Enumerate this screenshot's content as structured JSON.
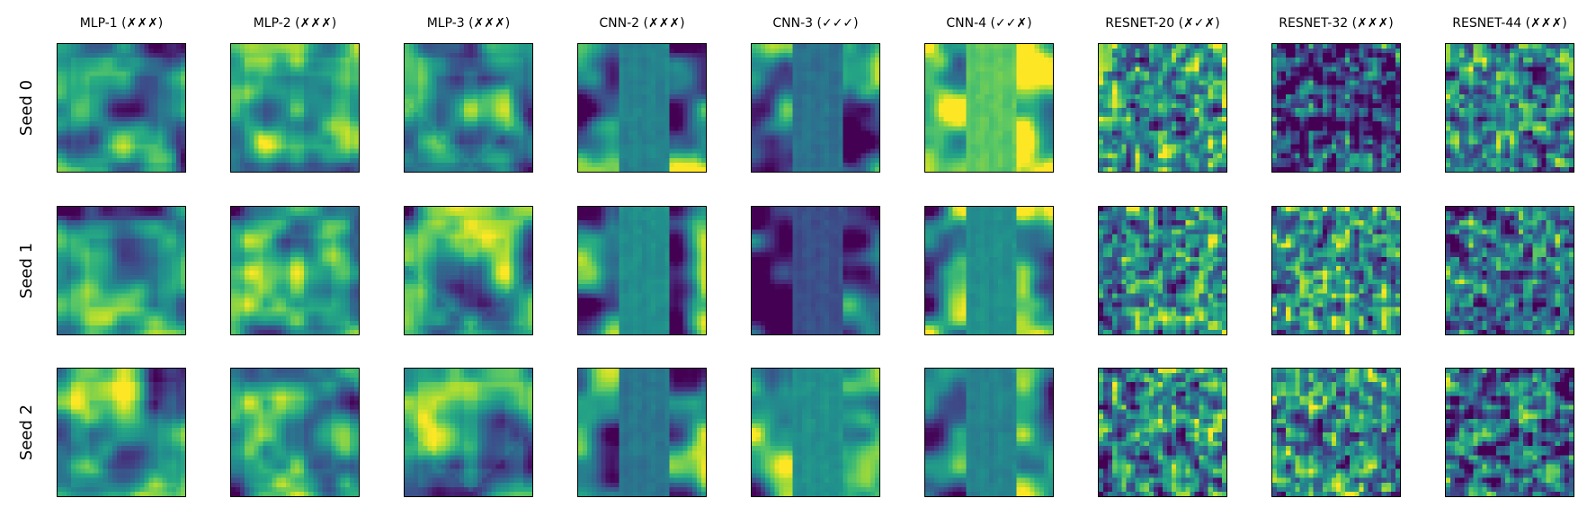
{
  "chart_data": {
    "type": "heatmap",
    "colormap": "viridis",
    "grid": false,
    "columns": [
      {
        "title": "MLP-1 (✗✗✗)",
        "pattern": "mlp1"
      },
      {
        "title": "MLP-2 (✗✗✗)",
        "pattern": "mlp2"
      },
      {
        "title": "MLP-3 (✗✗✗)",
        "pattern": "mlp3"
      },
      {
        "title": "CNN-2 (✗✗✗)",
        "pattern": "cnn"
      },
      {
        "title": "CNN-3 (✓✓✓)",
        "pattern": "cnn"
      },
      {
        "title": "CNN-4 (✓✓✗)",
        "pattern": "cnn"
      },
      {
        "title": "RESNET-20 (✗✓✗)",
        "pattern": "resnet"
      },
      {
        "title": "RESNET-32 (✗✗✗)",
        "pattern": "resnet"
      },
      {
        "title": "RESNET-44 (✗✗✗)",
        "pattern": "resnet"
      }
    ],
    "rows": [
      {
        "label": "Seed 0"
      },
      {
        "label": "Seed 1"
      },
      {
        "label": "Seed 2"
      }
    ],
    "panel_means": [
      [
        0.45,
        0.55,
        0.5,
        0.45,
        0.38,
        0.75,
        0.5,
        0.25,
        0.45
      ],
      [
        0.45,
        0.5,
        0.5,
        0.5,
        0.25,
        0.5,
        0.45,
        0.5,
        0.4
      ],
      [
        0.45,
        0.5,
        0.55,
        0.4,
        0.5,
        0.45,
        0.45,
        0.5,
        0.35
      ]
    ]
  }
}
